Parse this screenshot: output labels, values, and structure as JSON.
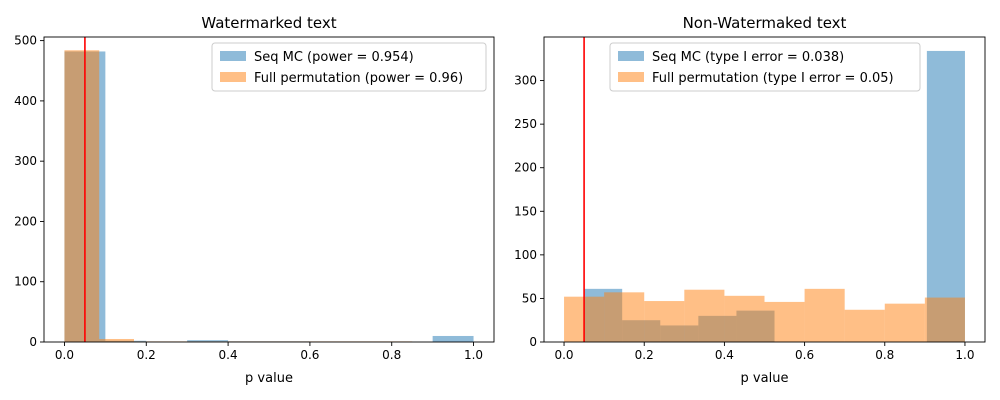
{
  "colors": {
    "seq_mc": "#1f77b4",
    "full_perm": "#ff7f0e",
    "threshold": "#ff0000"
  },
  "chart_data": [
    {
      "type": "histogram",
      "title": "Watermarked text",
      "xlabel": "p value",
      "ylabel": "",
      "xlim": [
        -0.05,
        1.05
      ],
      "ylim": [
        0,
        506
      ],
      "xticks": [
        "0.0",
        "0.2",
        "0.4",
        "0.6",
        "0.8",
        "1.0"
      ],
      "yticks": [
        "0",
        "100",
        "200",
        "300",
        "400",
        "500"
      ],
      "threshold": 0.05,
      "legend_position": "top-right",
      "series": [
        {
          "name": "Seq MC (power = 0.954)",
          "bins": [
            0,
            0.1,
            0.2,
            0.3,
            0.4,
            0.5,
            0.6,
            0.7,
            0.8,
            0.9,
            1.0
          ],
          "counts": [
            482,
            2,
            0,
            3,
            1,
            1,
            0,
            0,
            0,
            10
          ]
        },
        {
          "name": "Full permutation (power = 0.96)",
          "bins": [
            0,
            0.085,
            0.17,
            0.255,
            0.34,
            0.425,
            0.51,
            0.595,
            0.68,
            0.765,
            0.85
          ],
          "counts": [
            484,
            5,
            1,
            1,
            1,
            1,
            1,
            1,
            1,
            1
          ]
        }
      ]
    },
    {
      "type": "histogram",
      "title": "Non-Watermaked text",
      "xlabel": "p value",
      "ylabel": "",
      "xlim": [
        -0.05,
        1.05
      ],
      "ylim": [
        0,
        350
      ],
      "xticks": [
        "0.0",
        "0.2",
        "0.4",
        "0.6",
        "0.8",
        "1.0"
      ],
      "yticks": [
        "0",
        "50",
        "100",
        "150",
        "200",
        "250",
        "300"
      ],
      "threshold": 0.05,
      "legend_position": "top-center",
      "series": [
        {
          "name": "Seq MC (type I error = 0.038)",
          "bins": [
            0.05,
            0.145,
            0.24,
            0.335,
            0.43,
            0.525,
            0.62,
            0.715,
            0.81,
            0.905,
            1.0
          ],
          "counts": [
            61,
            25,
            19,
            30,
            36,
            0,
            0,
            0,
            0,
            334
          ]
        },
        {
          "name": "Full permutation (type I error = 0.05)",
          "bins": [
            0,
            0.1,
            0.2,
            0.3,
            0.4,
            0.5,
            0.6,
            0.7,
            0.8,
            0.9,
            1.0
          ],
          "counts": [
            52,
            57,
            47,
            60,
            53,
            46,
            61,
            37,
            44,
            51
          ]
        }
      ]
    }
  ]
}
